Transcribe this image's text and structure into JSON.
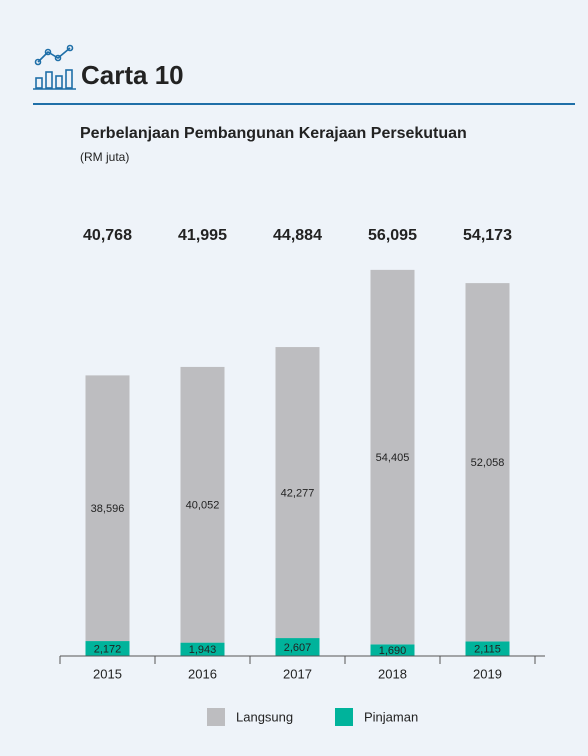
{
  "header": {
    "title": "Carta 10"
  },
  "chart_data": {
    "type": "stacked_bar",
    "title": "Perbelanjaan Pembangunan Kerajaan Persekutuan",
    "subtitle": "(RM juta)",
    "categories": [
      "2015",
      "2016",
      "2017",
      "2018",
      "2019"
    ],
    "series": [
      {
        "name": "Pinjaman",
        "color": "#00b39b",
        "values": [
          2172,
          1943,
          2607,
          1690,
          2115
        ],
        "value_labels": [
          "2,172",
          "1,943",
          "2,607",
          "1,690",
          "2,115"
        ]
      },
      {
        "name": "Langsung",
        "color": "#bdbdc0",
        "values": [
          38596,
          40052,
          42277,
          54405,
          52058
        ],
        "value_labels": [
          "38,596",
          "40,052",
          "42,277",
          "54,405",
          "52,058"
        ]
      }
    ],
    "totals": [
      40768,
      41995,
      44884,
      56095,
      54173
    ],
    "total_labels": [
      "40,768",
      "41,995",
      "44,884",
      "56,095",
      "54,173"
    ],
    "ylim": [
      0,
      60000
    ]
  }
}
